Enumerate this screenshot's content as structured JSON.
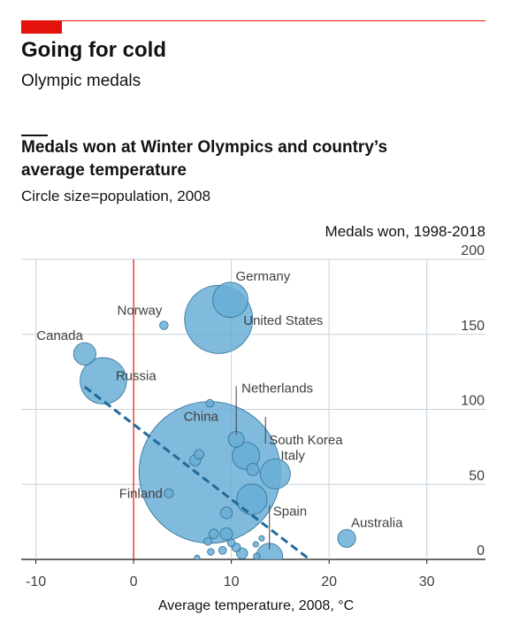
{
  "header": {
    "title": "Going for cold",
    "subtitle": "Olympic medals"
  },
  "chart_data": {
    "type": "scatter",
    "title": "Medals won at Winter Olympics and country’s average temperature",
    "subtitle": "Circle size=population, 2008",
    "xlabel": "Average temperature, 2008, °C",
    "ylabel": "Medals won, 1998-2018",
    "xlim": [
      -11.5,
      36
    ],
    "ylim": [
      0,
      200
    ],
    "xticks": [
      -10,
      0,
      10,
      20,
      30
    ],
    "yticks": [
      0,
      50,
      100,
      150,
      200
    ],
    "grid": true,
    "zero_line_color": "#e3120b",
    "bubble_color": "#6aaed6",
    "trend_color": "#1f6a9a",
    "trendline": {
      "x": [
        -5,
        18
      ],
      "y": [
        115,
        0
      ]
    },
    "points": [
      {
        "label": "Germany",
        "x": 9.9,
        "y": 173,
        "size": 82
      },
      {
        "label": "United States",
        "x": 8.7,
        "y": 160,
        "size": 307
      },
      {
        "label": "Norway",
        "x": 3.1,
        "y": 156,
        "size": 4.8
      },
      {
        "label": "Canada",
        "x": -5,
        "y": 137,
        "size": 33
      },
      {
        "label": "Russia",
        "x": -3.1,
        "y": 119,
        "size": 142
      },
      {
        "label": "Netherlands",
        "x": 10.5,
        "y": 80,
        "size": 16.5
      },
      {
        "label": "South Korea",
        "x": 11.5,
        "y": 69,
        "size": 49
      },
      {
        "label": "China",
        "x": 7.8,
        "y": 58,
        "size": 1325
      },
      {
        "label": "Italy",
        "x": 14.5,
        "y": 57,
        "size": 59.6
      },
      {
        "label": "Finland",
        "x": 3.6,
        "y": 44,
        "size": 5.3
      },
      {
        "label": "Spain",
        "x": 13.9,
        "y": 2,
        "size": 45.6
      },
      {
        "label": "Australia",
        "x": 21.8,
        "y": 14,
        "size": 21.2
      },
      {
        "label": "",
        "x": 7.8,
        "y": 104,
        "size": 4
      },
      {
        "label": "",
        "x": 12.2,
        "y": 60,
        "size": 10
      },
      {
        "label": "",
        "x": 6.3,
        "y": 66,
        "size": 8
      },
      {
        "label": "",
        "x": 6.7,
        "y": 70,
        "size": 6
      },
      {
        "label": "",
        "x": 12.1,
        "y": 40,
        "size": 61.4
      },
      {
        "label": "",
        "x": 9.5,
        "y": 31,
        "size": 9
      },
      {
        "label": "",
        "x": 9.5,
        "y": 17,
        "size": 10
      },
      {
        "label": "",
        "x": 8.2,
        "y": 17,
        "size": 6
      },
      {
        "label": "",
        "x": 10.0,
        "y": 11,
        "size": 4
      },
      {
        "label": "",
        "x": 11.1,
        "y": 4,
        "size": 8
      },
      {
        "label": "",
        "x": 10.5,
        "y": 8,
        "size": 5
      },
      {
        "label": "",
        "x": 7.6,
        "y": 12,
        "size": 4
      },
      {
        "label": "",
        "x": 7.9,
        "y": 5,
        "size": 3
      },
      {
        "label": "",
        "x": 12.5,
        "y": 10,
        "size": 2
      },
      {
        "label": "",
        "x": 13.1,
        "y": 14,
        "size": 2
      },
      {
        "label": "",
        "x": 6.5,
        "y": 1,
        "size": 2
      },
      {
        "label": "",
        "x": 9.1,
        "y": 6,
        "size": 4
      },
      {
        "label": "",
        "x": 12.6,
        "y": 2,
        "size": 3
      }
    ]
  }
}
